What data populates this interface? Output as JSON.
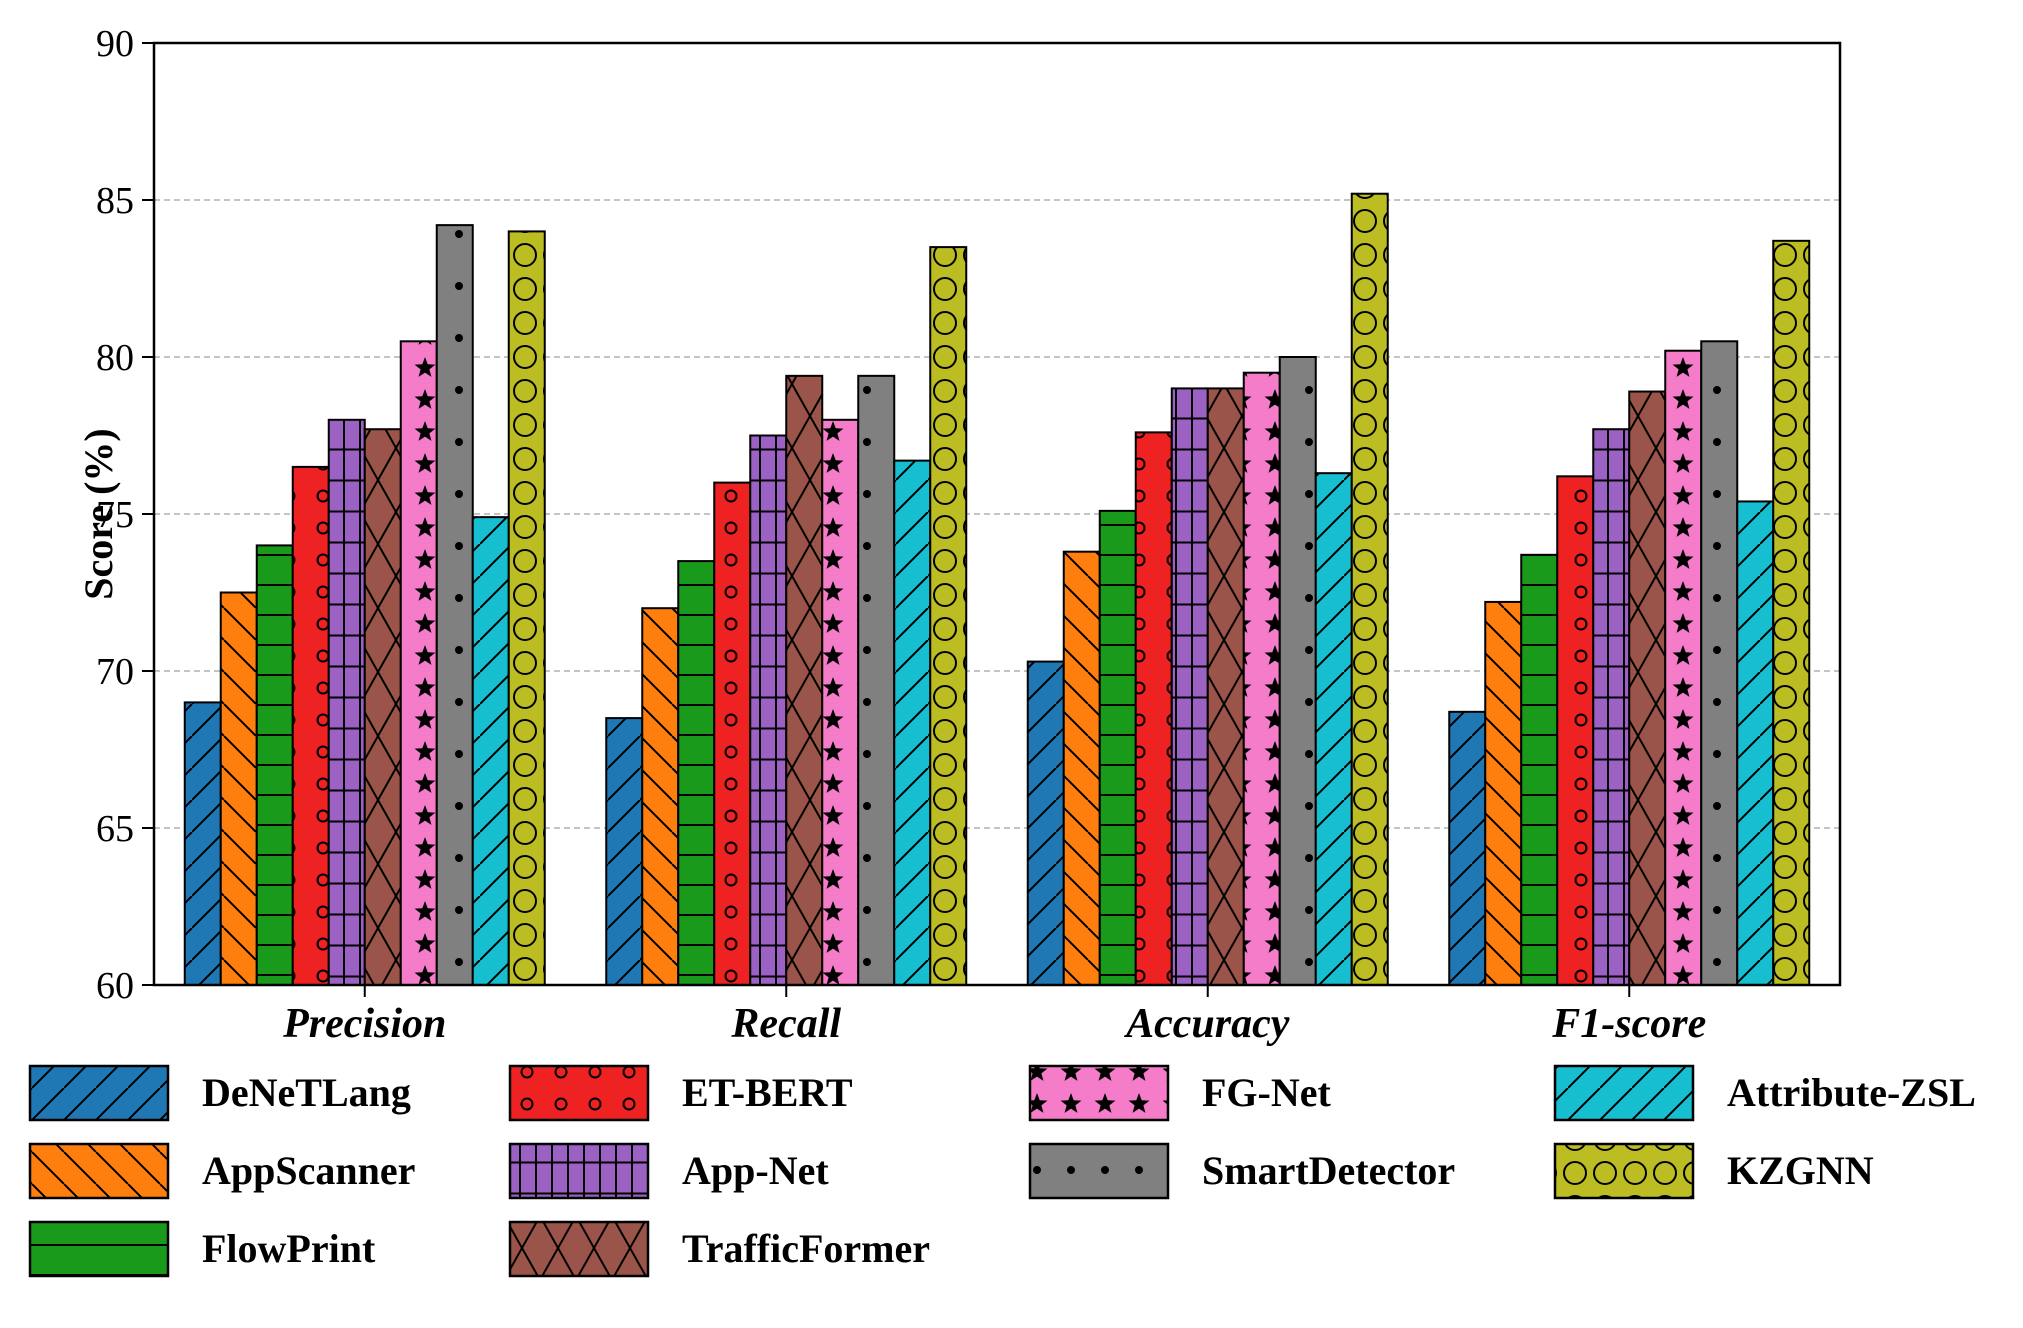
{
  "chart_data": {
    "type": "bar",
    "title": "",
    "xlabel": "",
    "ylabel": "Score (%)",
    "ylim": [
      60,
      90
    ],
    "yticks": [
      60,
      65,
      70,
      75,
      80,
      85,
      90
    ],
    "grid": "horizontal dashed",
    "legend_position": "bottom",
    "categories": [
      "Precision",
      "Recall",
      "Accuracy",
      "F1-score"
    ],
    "series": [
      {
        "name": "DeNeTLang",
        "color": "#1f77b4",
        "pattern": "hatch-forward",
        "values": [
          69.0,
          68.5,
          70.3,
          68.7
        ]
      },
      {
        "name": "AppScanner",
        "color": "#ff7f0e",
        "pattern": "hatch-back",
        "values": [
          72.5,
          72.0,
          73.8,
          72.2
        ]
      },
      {
        "name": "FlowPrint",
        "color": "#1a9a1a",
        "pattern": "horizontal",
        "values": [
          74.0,
          73.5,
          75.1,
          73.7
        ]
      },
      {
        "name": "ET-BERT",
        "color": "#ee2222",
        "pattern": "circles-small",
        "values": [
          76.5,
          76.0,
          77.6,
          76.2
        ]
      },
      {
        "name": "App-Net",
        "color": "#9b62c4",
        "pattern": "grid",
        "values": [
          78.0,
          77.5,
          79.0,
          77.7
        ]
      },
      {
        "name": "TrafficFormer",
        "color": "#9b5449",
        "pattern": "crosshatch",
        "values": [
          77.7,
          79.4,
          79.0,
          78.9
        ]
      },
      {
        "name": "FG-Net",
        "color": "#f57cc8",
        "pattern": "stars",
        "values": [
          80.5,
          78.0,
          79.5,
          80.2
        ]
      },
      {
        "name": "SmartDetector",
        "color": "#808080",
        "pattern": "dots",
        "values": [
          84.2,
          79.4,
          80.0,
          80.5
        ]
      },
      {
        "name": "Attribute-ZSL",
        "color": "#17becf",
        "pattern": "hatch-forward",
        "values": [
          74.9,
          76.7,
          76.3,
          75.4
        ]
      },
      {
        "name": "KZGNN",
        "color": "#bcbd22",
        "pattern": "circles-large",
        "values": [
          84.0,
          83.5,
          85.2,
          83.7
        ]
      }
    ]
  }
}
